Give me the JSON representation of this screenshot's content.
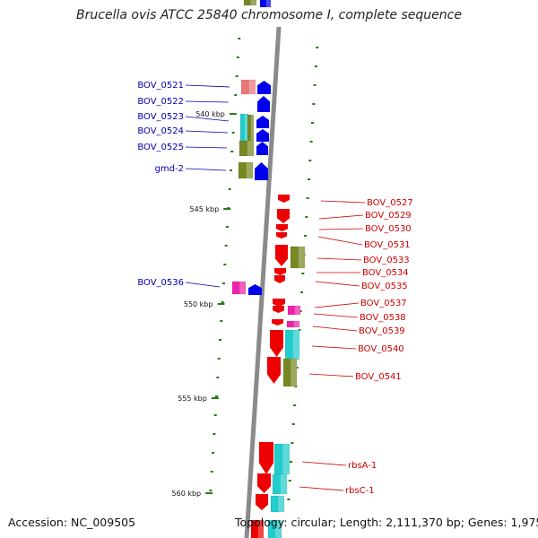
{
  "title": "Brucella ovis ATCC 25840 chromosome I, complete sequence",
  "footer": {
    "accession": "Accession: NC_009505",
    "summary": "Topology: circular; Length: 2,111,370 bp; Genes: 1,975"
  },
  "colors": {
    "forward": "#0000ee",
    "reverse": "#ee0000",
    "salmon": "#e87878",
    "cyan": "#22cccc",
    "olive": "#778822",
    "magenta": "#ee22aa",
    "backbone": "#888888",
    "tick": "#2a7a1a",
    "left_label": "#0000aa",
    "right_label": "#cc0000"
  },
  "ticks": [
    {
      "label": "540 kbp"
    },
    {
      "label": "545 kbp"
    },
    {
      "label": "550 kbp"
    },
    {
      "label": "555 kbp"
    },
    {
      "label": "560 kbp"
    }
  ],
  "left_labels": [
    "BOV_0521",
    "BOV_0522",
    "BOV_0523",
    "BOV_0524",
    "BOV_0525",
    "gmd-2",
    "BOV_0536"
  ],
  "right_labels": [
    "BOV_0527",
    "BOV_0529",
    "BOV_0530",
    "BOV_0531",
    "BOV_0533",
    "BOV_0534",
    "BOV_0535",
    "BOV_0537",
    "BOV_0538",
    "BOV_0539",
    "BOV_0540",
    "BOV_0541",
    "rbsA-1",
    "rbsC-1"
  ]
}
